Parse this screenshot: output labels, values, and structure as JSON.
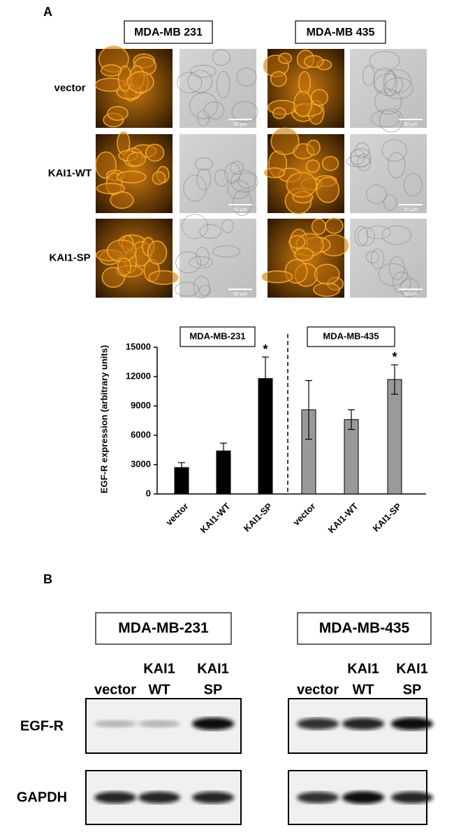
{
  "panel_a": {
    "label": "A",
    "cell_lines": [
      "MDA-MB 231",
      "MDA-MB 435"
    ],
    "rows": [
      "vector",
      "KAI1-WT",
      "KAI1-SP"
    ],
    "scale_bar": "50 μm"
  },
  "chart_data": {
    "type": "bar",
    "ylabel": "EGF-R expression (arbitrary units)",
    "groups": [
      "MDA-MB-231",
      "MDA-MB-435"
    ],
    "categories": [
      "vector",
      "KAI1-WT",
      "KAI1-SP",
      "vector",
      "KAI1-WT",
      "KAI1-SP"
    ],
    "values": [
      2700,
      4400,
      11800,
      8600,
      7600,
      11700
    ],
    "errors": [
      500,
      800,
      2200,
      3000,
      1000,
      1500
    ],
    "colors": [
      "#000000",
      "#000000",
      "#000000",
      "#999999",
      "#999999",
      "#999999"
    ],
    "significance": [
      null,
      null,
      "*",
      null,
      null,
      "*"
    ],
    "ylim": [
      0,
      15000
    ],
    "yticks": [
      0,
      3000,
      6000,
      9000,
      12000,
      15000
    ]
  },
  "panel_b": {
    "label": "B",
    "rows": [
      "EGF-R",
      "GAPDH"
    ],
    "blots": [
      {
        "cell_line": "MDA-MB-231",
        "lanes": [
          [
            "vector"
          ],
          [
            "KAI1",
            "WT"
          ],
          [
            "KAI1",
            "SP"
          ]
        ]
      },
      {
        "cell_line": "MDA-MB-435",
        "lanes": [
          [
            "vector"
          ],
          [
            "KAI1",
            "WT"
          ],
          [
            "KAI1",
            "SP"
          ]
        ]
      }
    ]
  }
}
